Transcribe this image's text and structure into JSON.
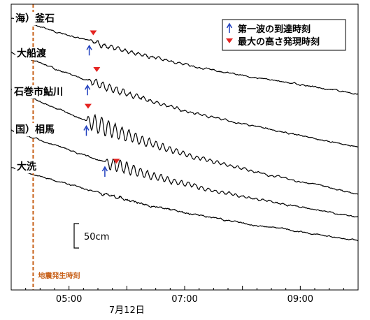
{
  "chart_data": {
    "type": "line",
    "x_unit": "time (hours)",
    "xlim": [
      4.0,
      10.0
    ],
    "x_ticks": [
      {
        "value": 5.0,
        "label": "05:00"
      },
      {
        "value": 7.0,
        "label": "07:00"
      },
      {
        "value": 9.0,
        "label": "09:00"
      }
    ],
    "minor_tick_step": 0.25,
    "xlabel": "7月12日",
    "grid": false,
    "legend": {
      "position": "top-right",
      "first_wave": "第一波の到達時刻",
      "max_height": "最大の高さ発現時刻"
    },
    "scale_bar": {
      "label": "50cm",
      "value_cm": 50
    },
    "quake_time": {
      "value": 4.38,
      "label": "地震発生時刻",
      "color": "#c8611a"
    },
    "series": [
      {
        "label": "海）釜石",
        "first_wave_time": 5.35,
        "max_height_time": 5.42,
        "max_amplitude_cm": 10
      },
      {
        "label": "大船渡",
        "first_wave_time": 5.32,
        "max_height_time": 5.48,
        "max_amplitude_cm": 15
      },
      {
        "label": "石巻市鮎川",
        "first_wave_time": 5.3,
        "max_height_time": 5.33,
        "max_amplitude_cm": 35
      },
      {
        "label": "国）相馬",
        "first_wave_time": 5.62,
        "max_height_time": 5.82,
        "max_amplitude_cm": 25
      },
      {
        "label": "大洗",
        "first_wave_time": null,
        "max_height_time": null,
        "max_amplitude_cm": 5
      }
    ]
  },
  "colors": {
    "arrow": "#1f3fbf",
    "triangle": "#e52421",
    "trace": "#000000",
    "quake_line": "#c8611a"
  },
  "icons": {
    "first_wave": "up-arrow-icon",
    "max_height": "down-triangle-icon"
  }
}
